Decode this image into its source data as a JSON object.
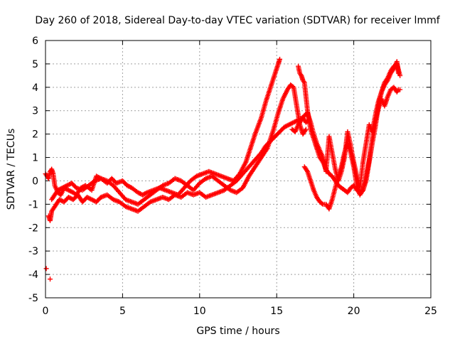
{
  "chart_data": {
    "type": "scatter",
    "title": "Day 260 of 2018, Sidereal Day-to-day VTEC variation (SDTVAR) for receiver lmmf",
    "xlabel": "GPS time / hours",
    "ylabel": "SDTVAR / TECUs",
    "xlim": [
      0,
      25
    ],
    "ylim": [
      -5,
      6
    ],
    "xticks": [
      "0",
      "5",
      "10",
      "15",
      "20",
      "25"
    ],
    "yticks": [
      "-5",
      "-4",
      "-3",
      "-2",
      "-1",
      "0",
      "1",
      "2",
      "3",
      "4",
      "5",
      "6"
    ],
    "grid": true,
    "marker": "plus",
    "color": "#ff0000",
    "tracks": [
      {
        "x": [
          0.0,
          0.1,
          0.2,
          0.3,
          0.4,
          0.5,
          0.6,
          0.8,
          1.0,
          1.2,
          1.5,
          1.8,
          2.0,
          2.3,
          2.6,
          3.0,
          3.3,
          3.6,
          4.0,
          4.3,
          4.6,
          5.0,
          5.3,
          5.6,
          6.0,
          6.3,
          6.6,
          7.0,
          7.4,
          7.8,
          8.2,
          8.6,
          9.0,
          9.4,
          9.8,
          10.2,
          10.6,
          11.0,
          11.4,
          11.8,
          12.2,
          12.6,
          13.0,
          13.3,
          13.6,
          14.0,
          14.3,
          14.6,
          14.9,
          15.1,
          15.2
        ],
        "y": [
          0.3,
          0.2,
          0.1,
          0.4,
          0.5,
          0.3,
          -0.2,
          -0.5,
          -0.6,
          -0.3,
          -0.4,
          -0.5,
          -0.6,
          -0.3,
          -0.2,
          -0.4,
          0.2,
          0.1,
          -0.1,
          0.1,
          -0.1,
          0.0,
          -0.2,
          -0.3,
          -0.5,
          -0.6,
          -0.5,
          -0.4,
          -0.3,
          -0.4,
          -0.5,
          -0.6,
          -0.3,
          0.0,
          0.2,
          0.3,
          0.4,
          0.3,
          0.2,
          0.1,
          0.0,
          0.3,
          0.8,
          1.4,
          2.0,
          2.7,
          3.4,
          4.0,
          4.6,
          5.0,
          5.2
        ]
      },
      {
        "x": [
          0.2,
          0.3,
          0.4,
          0.5,
          0.7,
          0.9,
          1.2,
          1.5,
          1.8,
          2.1,
          2.4,
          2.7,
          3.0,
          3.3,
          3.6,
          4.0,
          4.4,
          4.8,
          5.2,
          5.6,
          6.0,
          6.4,
          6.8,
          7.2,
          7.6,
          8.0,
          8.4,
          8.8,
          9.2,
          9.6,
          10.0,
          10.4,
          10.8,
          11.2,
          11.6,
          12.0,
          12.4,
          12.8,
          13.2,
          13.6,
          14.0,
          14.3,
          14.6,
          14.9,
          15.2,
          15.5,
          15.8,
          16.1,
          16.4,
          16.7,
          16.9,
          17.1
        ],
        "y": [
          -1.5,
          -1.7,
          -1.3,
          -1.2,
          -1.0,
          -0.8,
          -0.9,
          -0.7,
          -0.8,
          -0.6,
          -0.9,
          -0.7,
          -0.8,
          -0.9,
          -0.7,
          -0.6,
          -0.8,
          -0.9,
          -1.1,
          -1.2,
          -1.3,
          -1.1,
          -0.9,
          -0.8,
          -0.7,
          -0.8,
          -0.6,
          -0.7,
          -0.5,
          -0.6,
          -0.5,
          -0.7,
          -0.6,
          -0.5,
          -0.4,
          -0.2,
          0.0,
          0.3,
          0.6,
          0.9,
          1.2,
          1.5,
          1.7,
          1.9,
          2.1,
          2.3,
          2.4,
          2.5,
          2.6,
          2.7,
          2.5,
          2.6
        ]
      },
      {
        "x": [
          0.4,
          0.6,
          0.8,
          1.1,
          1.4,
          1.7,
          2.0,
          2.4,
          2.8,
          3.2,
          3.6,
          4.0,
          4.4,
          4.8,
          5.2,
          5.6,
          6.0,
          6.4,
          6.8,
          7.2,
          7.6,
          8.0,
          8.4,
          8.8,
          9.2,
          9.6,
          10.0,
          10.4,
          10.8,
          11.2,
          11.6,
          12.0,
          12.4,
          12.8,
          13.2,
          13.6,
          14.0,
          14.4,
          14.8,
          15.1,
          15.4,
          15.7,
          15.9,
          16.1,
          16.3,
          16.5,
          16.7,
          16.9
        ],
        "y": [
          -0.8,
          -0.6,
          -0.4,
          -0.3,
          -0.2,
          -0.1,
          -0.3,
          -0.4,
          -0.2,
          0.0,
          0.1,
          0.0,
          -0.2,
          -0.5,
          -0.8,
          -0.9,
          -1.0,
          -0.8,
          -0.6,
          -0.4,
          -0.2,
          -0.1,
          0.1,
          0.0,
          -0.2,
          -0.4,
          -0.1,
          0.1,
          0.2,
          0.0,
          -0.2,
          -0.4,
          -0.5,
          -0.3,
          0.2,
          0.6,
          1.0,
          1.4,
          2.2,
          2.9,
          3.5,
          3.9,
          4.1,
          4.0,
          3.2,
          2.4,
          2.0,
          2.2
        ]
      },
      {
        "x": [
          16.4,
          16.5,
          16.6,
          16.7,
          16.8,
          17.0,
          17.2,
          17.4,
          17.6,
          17.8,
          18.0,
          18.2,
          18.4,
          18.6,
          18.8,
          19.0,
          19.2,
          19.4,
          19.6,
          19.8,
          20.0,
          20.2,
          20.4,
          20.6,
          20.8,
          21.0,
          21.2,
          21.4,
          21.6,
          21.8,
          22.0,
          22.2,
          22.4,
          22.6,
          22.8,
          22.9,
          23.0
        ],
        "y": [
          4.9,
          4.6,
          4.5,
          4.3,
          4.2,
          3.0,
          2.2,
          1.8,
          1.4,
          1.0,
          0.8,
          0.5,
          0.3,
          0.2,
          0.0,
          -0.2,
          -0.3,
          -0.4,
          -0.5,
          -0.3,
          -0.2,
          -0.4,
          -0.5,
          -0.4,
          0.2,
          0.9,
          1.8,
          2.6,
          3.1,
          3.5,
          3.2,
          3.6,
          3.9,
          4.0,
          3.8,
          3.9,
          3.9
        ]
      },
      {
        "x": [
          16.8,
          17.0,
          17.2,
          17.4,
          17.6,
          17.8,
          18.0,
          18.2,
          18.4,
          18.6,
          18.8,
          19.0,
          19.2,
          19.4,
          19.6,
          19.8,
          20.0,
          20.2,
          20.4,
          20.6,
          20.8,
          21.0,
          21.2,
          21.4,
          21.6,
          21.8,
          22.0,
          22.2,
          22.4,
          22.6,
          22.8,
          22.9
        ],
        "y": [
          0.6,
          0.4,
          0.0,
          -0.4,
          -0.7,
          -0.9,
          -1.0,
          -1.0,
          -1.2,
          -0.8,
          -0.3,
          0.2,
          0.6,
          1.2,
          1.6,
          1.2,
          0.6,
          -0.2,
          -0.6,
          -0.4,
          0.0,
          0.8,
          1.6,
          2.3,
          3.2,
          3.8,
          4.1,
          4.3,
          4.6,
          4.8,
          5.1,
          4.6
        ]
      },
      {
        "x": [
          16.0,
          16.2,
          16.4,
          16.6,
          16.8,
          17.0,
          17.2,
          17.4,
          17.6,
          17.8,
          18.0,
          18.2,
          18.4,
          18.6,
          18.8,
          19.0,
          19.2,
          19.4,
          19.6,
          19.8,
          20.0,
          20.2,
          20.4,
          20.6,
          20.8,
          21.0,
          21.2,
          21.4,
          21.6,
          21.8,
          22.0,
          22.2,
          22.4,
          22.6,
          22.8,
          23.0
        ],
        "y": [
          2.2,
          2.1,
          2.4,
          2.6,
          2.8,
          2.9,
          2.5,
          2.0,
          1.6,
          1.3,
          1.0,
          0.4,
          1.9,
          1.2,
          0.5,
          0.0,
          0.4,
          1.0,
          2.1,
          1.5,
          0.8,
          0.2,
          -0.3,
          0.8,
          1.6,
          2.4,
          2.1,
          2.8,
          3.4,
          3.8,
          4.2,
          4.4,
          4.7,
          4.9,
          5.0,
          4.5
        ]
      }
    ],
    "outliers": {
      "x": [
        0.05,
        0.3
      ],
      "y": [
        -3.75,
        -4.2
      ]
    }
  }
}
